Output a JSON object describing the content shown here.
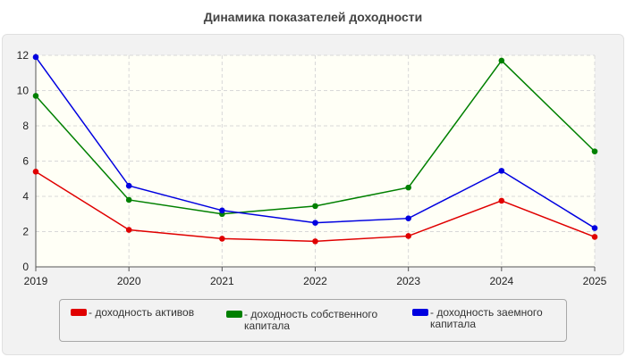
{
  "chart_data": {
    "type": "line",
    "title": "Динамика показателей доходности",
    "xlabel": "",
    "ylabel": "",
    "x": [
      "2019",
      "2020",
      "2021",
      "2022",
      "2023",
      "2024",
      "2025"
    ],
    "ylim": [
      0,
      12
    ],
    "yticks": [
      "0",
      "2",
      "4",
      "6",
      "8",
      "10",
      "12"
    ],
    "grid": true,
    "legend_position": "bottom",
    "series": [
      {
        "name": "- доходность активов",
        "color": "#e00000",
        "values": [
          5.4,
          2.1,
          1.6,
          1.45,
          1.75,
          3.75,
          1.7
        ]
      },
      {
        "name": "- доходность собственного капитала",
        "color": "#008000",
        "values": [
          9.7,
          3.8,
          3.0,
          3.45,
          4.5,
          11.7,
          6.55
        ]
      },
      {
        "name": "- доходность заемного капитала",
        "color": "#0000e0",
        "values": [
          11.9,
          4.6,
          3.2,
          2.5,
          2.75,
          5.45,
          2.2
        ]
      }
    ]
  }
}
